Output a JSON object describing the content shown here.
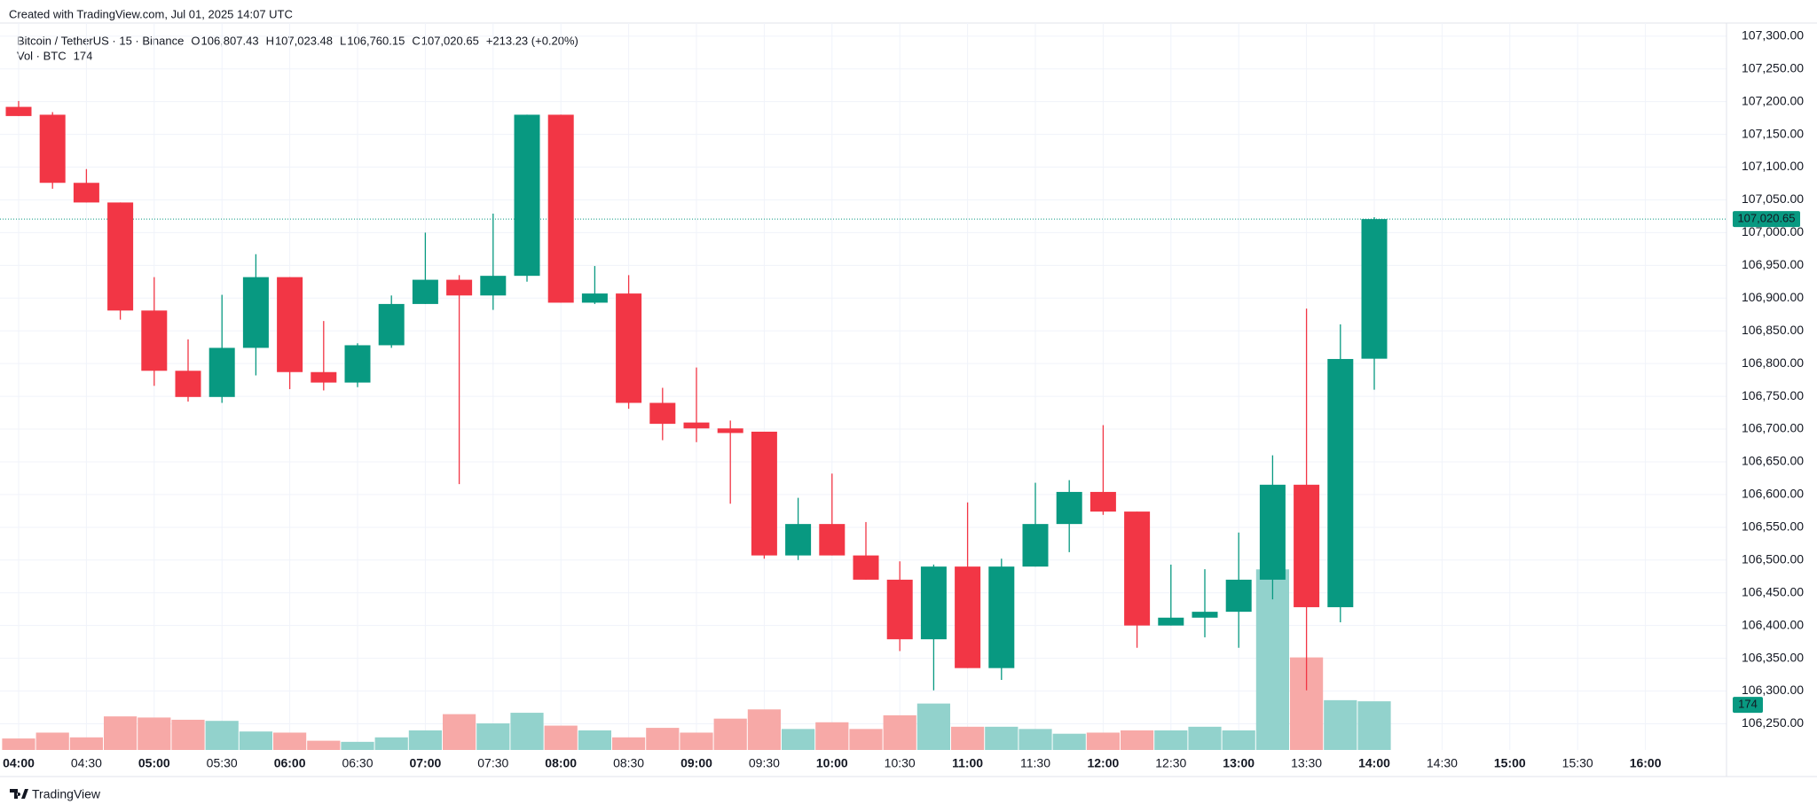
{
  "header": {
    "credit": "Created with TradingView.com, Jul 01, 2025 14:07 UTC"
  },
  "legend": {
    "symbol": "Bitcoin / TetherUS · 15 · Binance",
    "o_label": "O",
    "o_value": "106,807.43",
    "h_label": "H",
    "h_value": "107,023.48",
    "l_label": "L",
    "l_value": "106,760.15",
    "c_label": "C",
    "c_value": "107,020.65",
    "change": "+213.23 (+0.20%)",
    "vol_label": "Vol · BTC",
    "vol_value": "174"
  },
  "footer": {
    "brand": "TradingView"
  },
  "chart_data": {
    "type": "candlestick",
    "categories": [
      "04:00",
      null,
      "04:30",
      null,
      "05:00",
      null,
      "05:30",
      null,
      "06:00",
      null,
      "06:30",
      null,
      "07:00",
      null,
      "07:30",
      null,
      "08:00",
      null,
      "08:30",
      null,
      "09:00",
      null,
      "09:30",
      null,
      "10:00",
      null,
      "10:30",
      null,
      "11:00",
      null,
      "11:30",
      null,
      "12:00",
      null,
      "12:30",
      null,
      "13:00",
      null,
      "13:30",
      null,
      "14:00"
    ],
    "x_extension": [
      "14:30",
      "15:00",
      "15:30",
      "16:00"
    ],
    "open": [
      107192,
      107180,
      107076,
      107046,
      106881,
      106789,
      106749,
      106824,
      106932,
      106787,
      106771,
      106828,
      106891,
      106928,
      106904,
      106934,
      107180,
      106893,
      106907,
      106740,
      106710,
      106701,
      106696,
      106507,
      106555,
      106507,
      106470,
      106379,
      106490,
      106335,
      106490,
      106555,
      106604,
      106574,
      106400,
      106412,
      106421,
      106470,
      106615,
      106428,
      106807.43
    ],
    "high": [
      107201,
      107184,
      107097,
      107046,
      106932,
      106837,
      106905,
      106967,
      106932,
      106865,
      106831,
      106904,
      107000,
      106935,
      107029,
      107180,
      107180,
      106949,
      106935,
      106763,
      106794,
      106713,
      106696,
      106595,
      106632,
      106558,
      106498,
      106493,
      106588,
      106502,
      106618,
      106622,
      106706,
      106574,
      106493,
      106486,
      106542,
      106660,
      106884,
      106860,
      107023.48
    ],
    "low": [
      107178,
      107067,
      107046,
      106867,
      106766,
      106742,
      106740,
      106782,
      106761,
      106759,
      106764,
      106824,
      106891,
      106616,
      106882,
      106925,
      106893,
      106891,
      106731,
      106683,
      106680,
      106586,
      106502,
      106500,
      106507,
      106470,
      106361,
      106301,
      106335,
      106317,
      106490,
      106512,
      106569,
      106366,
      106400,
      106382,
      106366,
      106440,
      106301,
      106405,
      106760.15
    ],
    "close": [
      107178,
      107076,
      107046,
      106881,
      106789,
      106749,
      106824,
      106932,
      106787,
      106771,
      106828,
      106891,
      106928,
      106904,
      106934,
      107180,
      106893,
      106907,
      106740,
      106708,
      106701,
      106694,
      106507,
      106555,
      106507,
      106470,
      106379,
      106490,
      106335,
      106490,
      106555,
      106604,
      106574,
      106400,
      106412,
      106421,
      106470,
      106615,
      106428,
      106807,
      107020.65
    ],
    "volume": [
      41,
      62,
      45,
      120,
      116,
      108,
      104,
      66,
      62,
      33,
      29,
      45,
      70,
      128,
      95,
      133,
      87,
      70,
      45,
      79,
      62,
      112,
      145,
      75,
      99,
      75,
      124,
      166,
      83,
      83,
      75,
      58,
      62,
      70,
      70,
      83,
      70,
      646,
      331,
      178,
      174
    ],
    "up_color": "#089981",
    "down_color": "#f23645",
    "up_volume_color": "#92d2cc",
    "down_volume_color": "#f7a9a7",
    "ylim": [
      106210,
      107320
    ],
    "yticks": [
      {
        "value": 106250,
        "label": "106,250.00"
      },
      {
        "value": 106300,
        "label": "106,300.00"
      },
      {
        "value": 106350,
        "label": "106,350.00"
      },
      {
        "value": 106400,
        "label": "106,400.00"
      },
      {
        "value": 106450,
        "label": "106,450.00"
      },
      {
        "value": 106500,
        "label": "106,500.00"
      },
      {
        "value": 106550,
        "label": "106,550.00"
      },
      {
        "value": 106600,
        "label": "106,600.00"
      },
      {
        "value": 106650,
        "label": "106,650.00"
      },
      {
        "value": 106700,
        "label": "106,700.00"
      },
      {
        "value": 106750,
        "label": "106,750.00"
      },
      {
        "value": 106800,
        "label": "106,800.00"
      },
      {
        "value": 106850,
        "label": "106,850.00"
      },
      {
        "value": 106900,
        "label": "106,900.00"
      },
      {
        "value": 106950,
        "label": "106,950.00"
      },
      {
        "value": 107000,
        "label": "107,000.00"
      },
      {
        "value": 107050,
        "label": "107,050.00"
      },
      {
        "value": 107100,
        "label": "107,100.00"
      },
      {
        "value": 107150,
        "label": "107,150.00"
      },
      {
        "value": 107200,
        "label": "107,200.00"
      },
      {
        "value": 107250,
        "label": "107,250.00"
      },
      {
        "value": 107300,
        "label": "107,300.00"
      }
    ],
    "y2lim": [
      0,
      2600
    ],
    "grid": true,
    "last_price_label": "107,020.65",
    "last_volume_label": "174"
  }
}
